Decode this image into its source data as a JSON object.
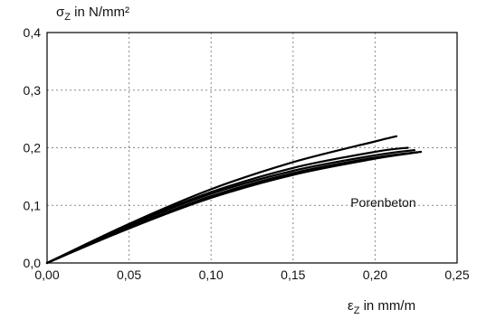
{
  "chart_data": {
    "type": "line",
    "xlabel_symbol": "ε",
    "xlabel_sub": "Z",
    "xlabel_unit": " in mm/m",
    "ylabel_symbol": "σ",
    "ylabel_sub": "Z",
    "ylabel_unit": " in N/mm²",
    "xlim": [
      0,
      0.25
    ],
    "ylim": [
      0,
      0.4
    ],
    "x_ticks": [
      0,
      0.05,
      0.1,
      0.15,
      0.2,
      0.25
    ],
    "x_tick_labels": [
      "0,00",
      "0,05",
      "0,10",
      "0,15",
      "0,20",
      "0,25"
    ],
    "y_ticks": [
      0,
      0.1,
      0.2,
      0.3,
      0.4
    ],
    "y_tick_labels": [
      "0,0",
      "0,1",
      "0,2",
      "0,3",
      "0,4"
    ],
    "grid": true,
    "annotation": {
      "text": "Porenbeton",
      "x": 0.185,
      "y": 0.105
    },
    "series": [
      {
        "x": [
          0,
          0.05,
          0.1,
          0.15,
          0.2,
          0.213
        ],
        "y": [
          0,
          0.068,
          0.128,
          0.175,
          0.211,
          0.22
        ]
      },
      {
        "x": [
          0,
          0.05,
          0.1,
          0.15,
          0.2,
          0.22
        ],
        "y": [
          0,
          0.066,
          0.123,
          0.165,
          0.193,
          0.2
        ]
      },
      {
        "x": [
          0,
          0.05,
          0.1,
          0.15,
          0.2,
          0.224
        ],
        "y": [
          0,
          0.065,
          0.12,
          0.16,
          0.187,
          0.196
        ]
      },
      {
        "x": [
          0,
          0.05,
          0.1,
          0.15,
          0.2,
          0.228
        ],
        "y": [
          0,
          0.062,
          0.116,
          0.156,
          0.183,
          0.193
        ]
      },
      {
        "x": [
          0,
          0.05,
          0.1,
          0.15,
          0.2,
          0.226
        ],
        "y": [
          0,
          0.06,
          0.113,
          0.153,
          0.181,
          0.192
        ]
      }
    ]
  }
}
